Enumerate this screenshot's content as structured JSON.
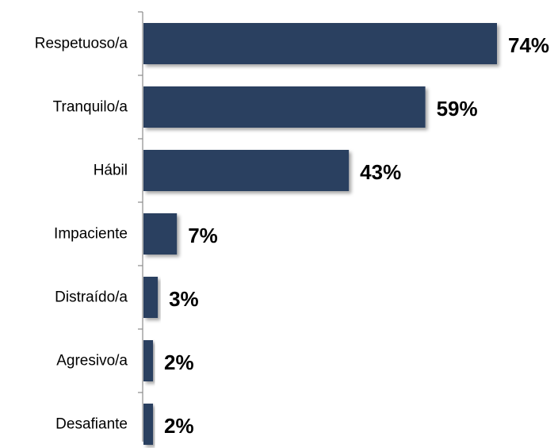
{
  "chart_data": {
    "type": "bar",
    "orientation": "horizontal",
    "categories": [
      "Respetuoso/a",
      "Tranquilo/a",
      "Hábil",
      "Impaciente",
      "Distraído/a",
      "Agresivo/a",
      "Desafiante"
    ],
    "values": [
      74,
      59,
      43,
      7,
      3,
      2,
      2
    ],
    "value_labels": [
      "74%",
      "59%",
      "43%",
      "7%",
      "3%",
      "2%",
      "2%"
    ],
    "title": "",
    "xlabel": "",
    "ylabel": "",
    "xlim": [
      0,
      74
    ],
    "grid": false,
    "legend": "none",
    "bar_color": "#2a4060",
    "bar_shadow": true
  }
}
